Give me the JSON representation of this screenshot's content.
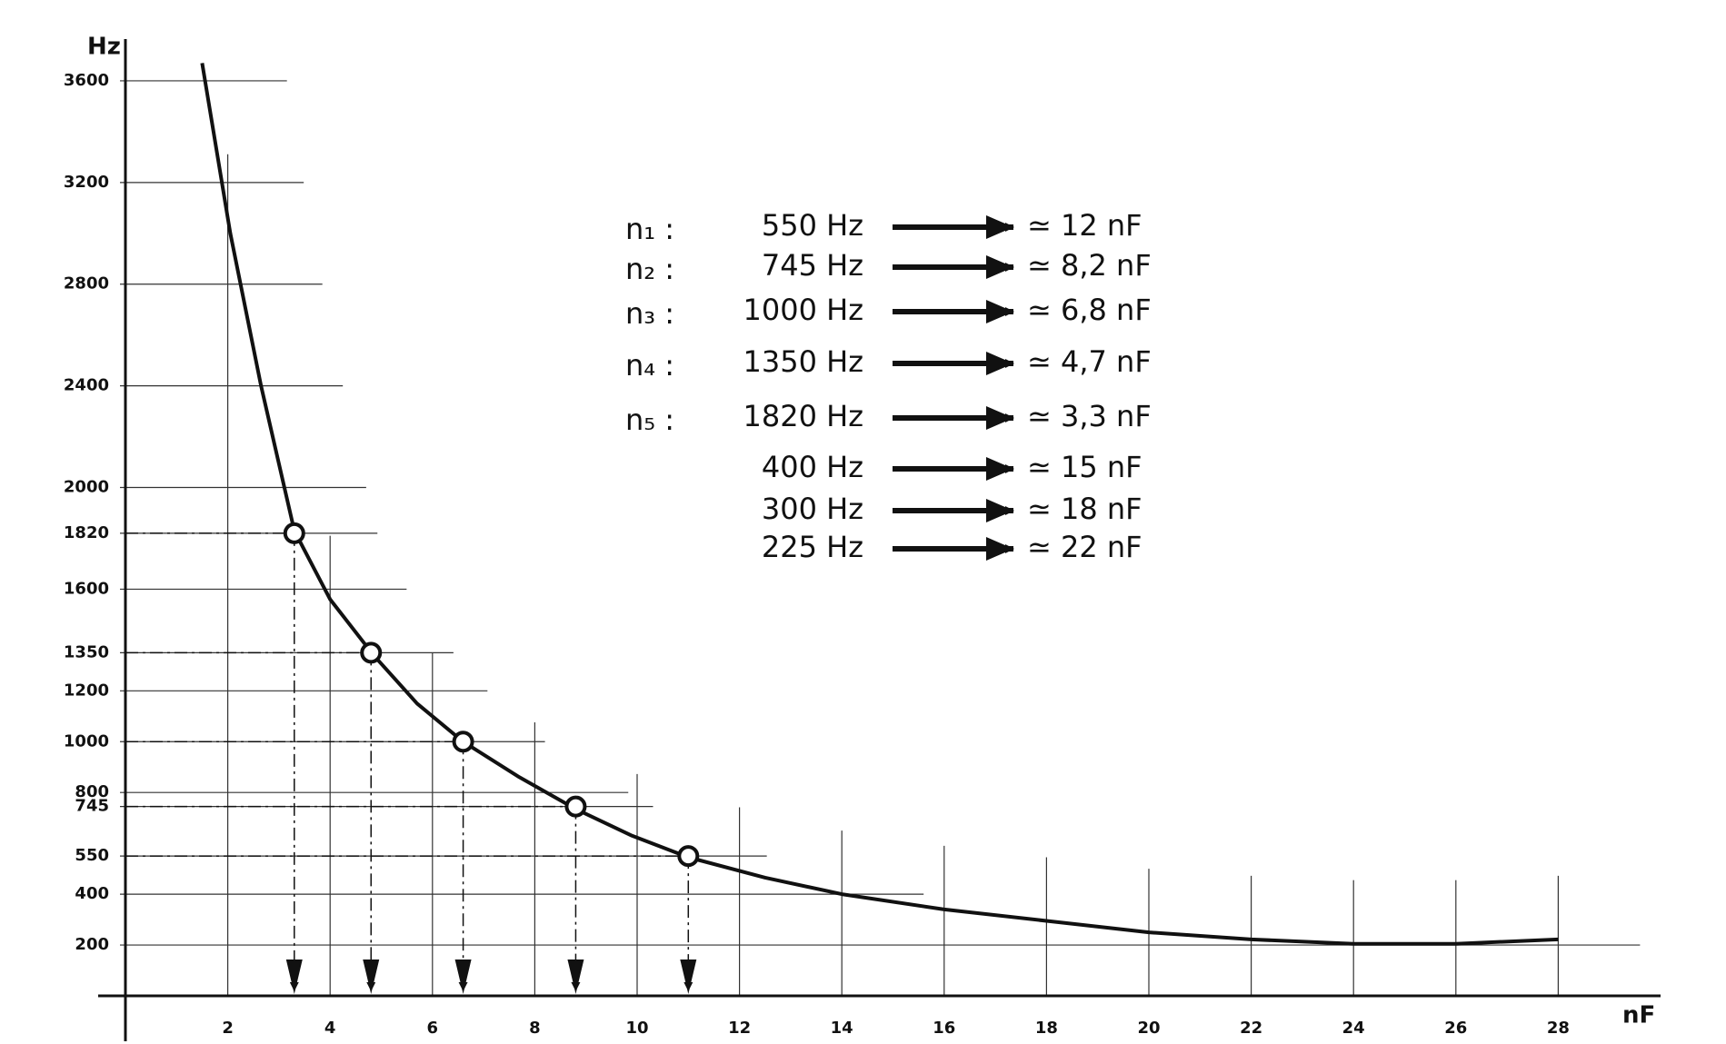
{
  "chart_data": {
    "type": "line",
    "y_label": "Hz",
    "x_label": "nF",
    "xlim": [
      0,
      30
    ],
    "ylim": [
      0,
      3800
    ],
    "xticks": [
      2,
      4,
      6,
      8,
      10,
      12,
      14,
      16,
      18,
      20,
      22,
      24,
      26,
      28
    ],
    "yticks": [
      200,
      400,
      550,
      745,
      800,
      1000,
      1200,
      1350,
      1600,
      1820,
      2000,
      2400,
      2800,
      3200,
      3600
    ],
    "grid": true,
    "series": [
      {
        "color": "#111111",
        "x": [
          1.5,
          2.05,
          2.65,
          3.3,
          4.0,
          4.85,
          5.7,
          6.6,
          7.7,
          8.8,
          9.9,
          11.0,
          12.5,
          14.0,
          16.0,
          18.0,
          20.0,
          22.0,
          24.0,
          26.0,
          28.0
        ],
        "values": [
          3670,
          3000,
          2400,
          1830,
          1560,
          1340,
          1150,
          1000,
          860,
          735,
          630,
          545,
          465,
          400,
          340,
          295,
          250,
          222,
          205,
          205,
          222
        ]
      },
      {
        "color": "#111111",
        "x": [
          3.3,
          4.8,
          6.6,
          8.8,
          11.0
        ],
        "values": [
          1820,
          1350,
          1000,
          745,
          550
        ],
        "marker": "circle"
      }
    ],
    "table": {
      "rows": [
        {
          "label": "n₁ :",
          "frequency": "550 Hz",
          "capacitance": "≃ 12 nF"
        },
        {
          "label": "n₂ :",
          "frequency": "745 Hz",
          "capacitance": "≃ 8,2 nF"
        },
        {
          "label": "n₃ :",
          "frequency": "1000 Hz",
          "capacitance": "≃ 6,8 nF"
        },
        {
          "label": "n₄ :",
          "frequency": "1350 Hz",
          "capacitance": "≃ 4,7 nF"
        },
        {
          "label": "n₅ :",
          "frequency": "1820 Hz",
          "capacitance": "≃ 3,3 nF"
        },
        {
          "label": null,
          "frequency": "400 Hz",
          "capacitance": "≃ 15 nF"
        },
        {
          "label": null,
          "frequency": "300 Hz",
          "capacitance": "≃ 18 nF"
        },
        {
          "label": null,
          "frequency": "225 Hz",
          "capacitance": "≃ 22 nF"
        }
      ]
    }
  }
}
